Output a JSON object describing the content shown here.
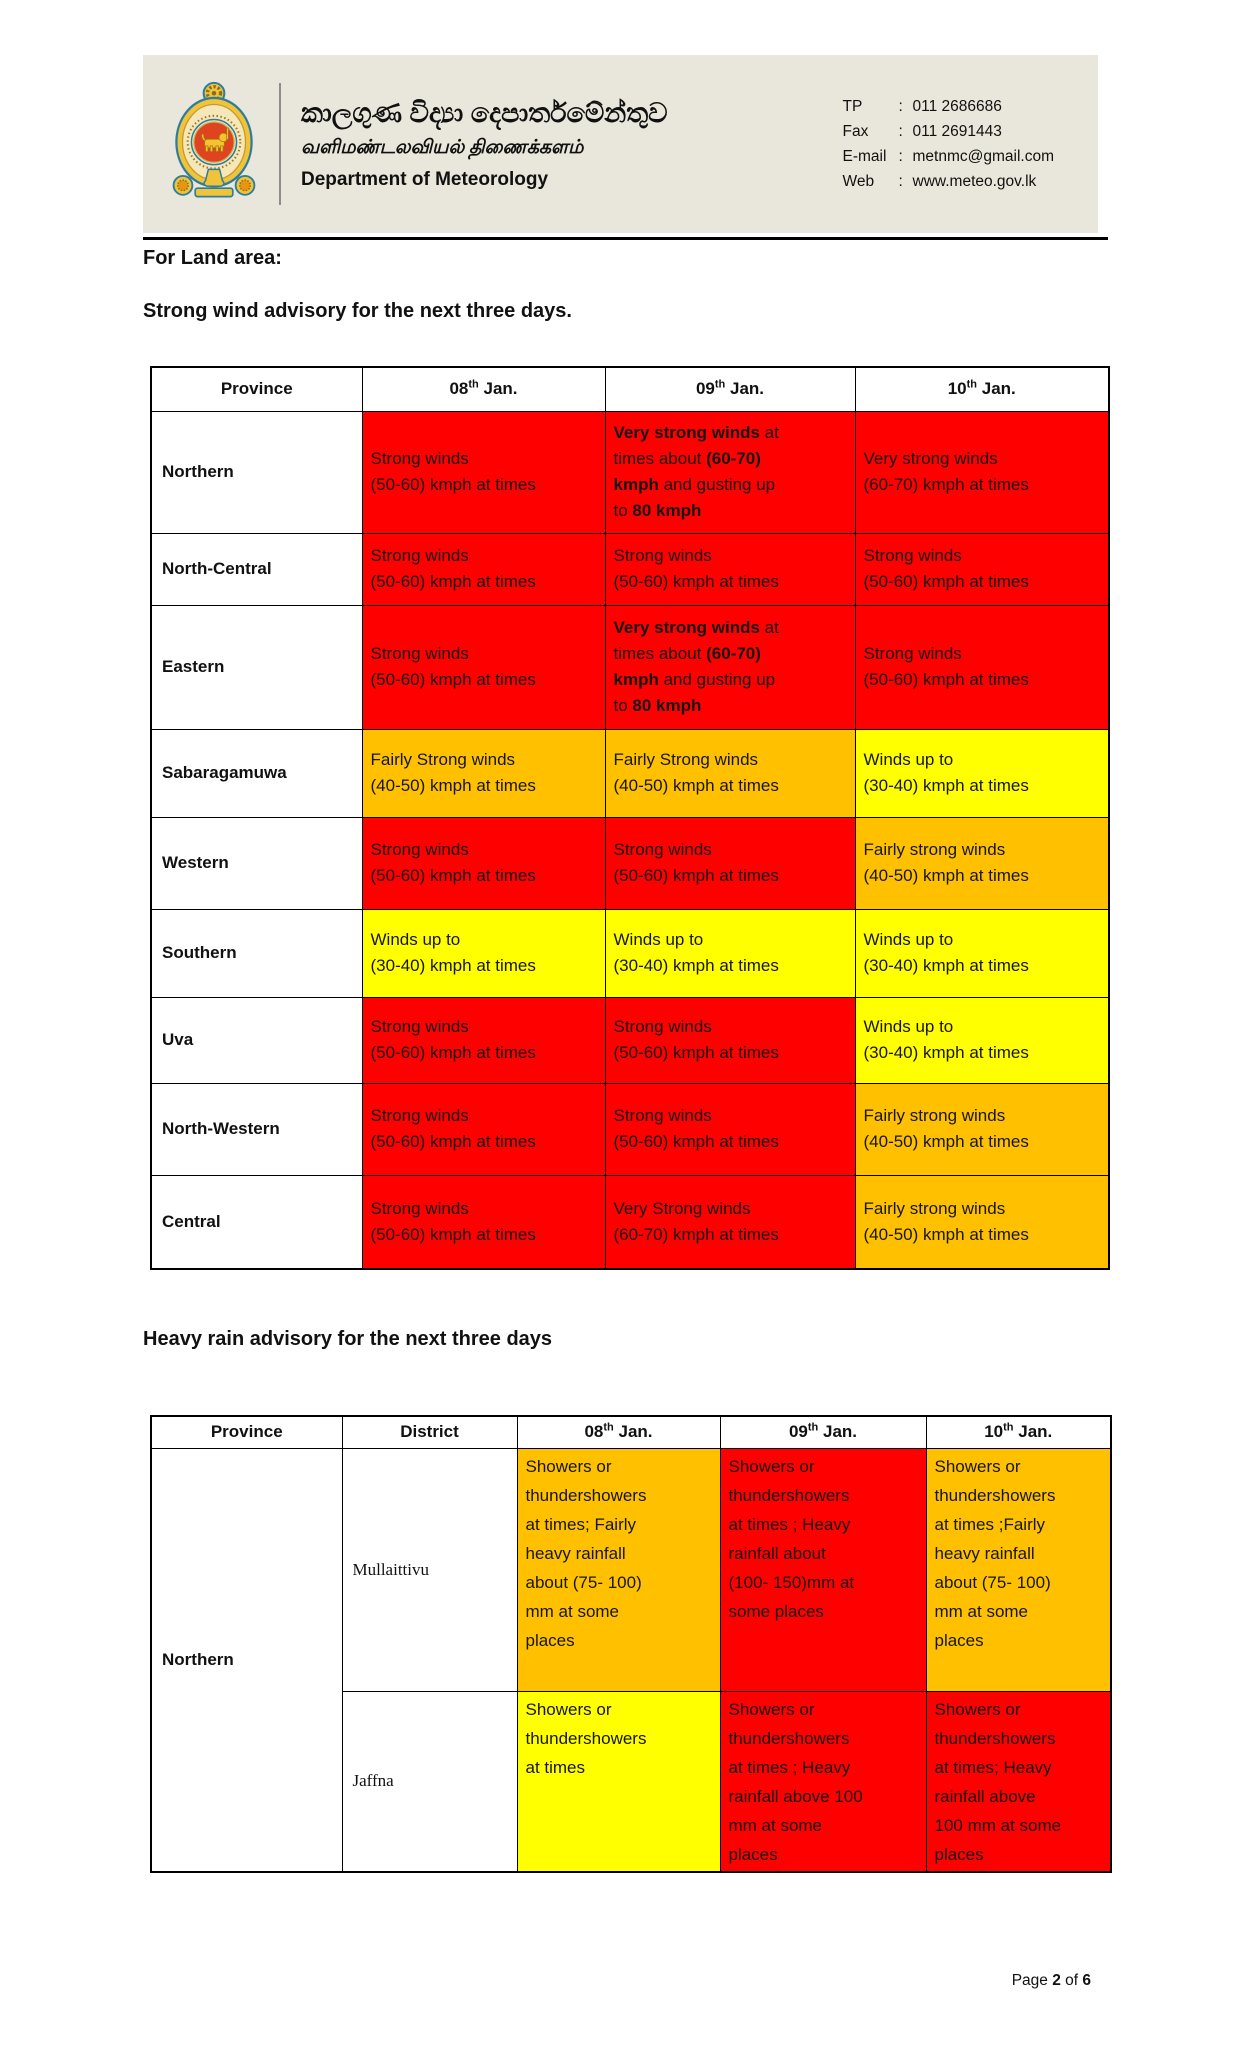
{
  "header": {
    "logo": "sri-lanka-state-emblem",
    "org": {
      "title_sinhala": "කාලගුණ විද්‍යා දෙපාර්තමේන්තුව",
      "title_tamil": "வளிமண்டலவியல் திணைக்களம்",
      "title_english": "Department of Meteorology"
    },
    "contacts": [
      {
        "label": "TP",
        "sep": ":",
        "value": "011 2686686"
      },
      {
        "label": "Fax",
        "sep": ":",
        "value": "011 2691443"
      },
      {
        "label": "E-mail",
        "sep": ":",
        "value": "metnmc@gmail.com"
      },
      {
        "label": "Web",
        "sep": ":",
        "value": "www.meteo.gov.lk"
      }
    ]
  },
  "headings": {
    "land_area": "For Land area:",
    "wind_advisory": "Strong wind advisory for the next three days.",
    "rain_advisory": "Heavy rain advisory for the next three days"
  },
  "colors": {
    "red": "#FF0000",
    "orange": "#FFC000",
    "yellow": "#FFFF00",
    "header_band": "#E9E6DB"
  },
  "wind_table": {
    "columns": [
      {
        "label": "Province"
      },
      {
        "day": "08",
        "suffix": "th",
        "rest": " Jan."
      },
      {
        "day": "09",
        "suffix": "th",
        "rest": " Jan."
      },
      {
        "day": "10",
        "suffix": "th",
        "rest": " Jan."
      }
    ],
    "rows": [
      {
        "province": "Northern",
        "cells": [
          {
            "color": "red",
            "text": "Strong winds\n(50-60) kmph at times"
          },
          {
            "color": "red",
            "segments": [
              {
                "t": "Very strong winds",
                "b": true
              },
              {
                "t": " at\ntimes about "
              },
              {
                "t": "(60-70)\nkmph",
                "b": true
              },
              {
                "t": " and gusting up\nto "
              },
              {
                "t": "80 kmph",
                "b": true
              }
            ]
          },
          {
            "color": "red",
            "text": "Very strong winds\n(60-70) kmph at times"
          }
        ]
      },
      {
        "province": "North-Central",
        "cells": [
          {
            "color": "red",
            "text": "Strong winds\n(50-60) kmph at times"
          },
          {
            "color": "red",
            "text": "Strong winds\n(50-60) kmph at times"
          },
          {
            "color": "red",
            "text": "Strong winds\n(50-60) kmph at times"
          }
        ]
      },
      {
        "province": "Eastern",
        "cells": [
          {
            "color": "red",
            "text": "Strong winds\n(50-60) kmph at times"
          },
          {
            "color": "red",
            "segments": [
              {
                "t": "Very strong winds",
                "b": true
              },
              {
                "t": " at\ntimes about "
              },
              {
                "t": "(60-70)\nkmph",
                "b": true
              },
              {
                "t": " and gusting up\nto "
              },
              {
                "t": "80 kmph",
                "b": true
              }
            ]
          },
          {
            "color": "red",
            "text": "Strong winds\n(50-60) kmph at times"
          }
        ]
      },
      {
        "province": "Sabaragamuwa",
        "cells": [
          {
            "color": "orange",
            "text": "Fairly Strong winds\n(40-50) kmph at times"
          },
          {
            "color": "orange",
            "text": "Fairly Strong winds\n(40-50) kmph at times"
          },
          {
            "color": "yellow",
            "text": "Winds up to\n(30-40) kmph at times"
          }
        ]
      },
      {
        "province": "Western",
        "cells": [
          {
            "color": "red",
            "text": "Strong winds\n(50-60) kmph at times"
          },
          {
            "color": "red",
            "text": "Strong winds\n(50-60) kmph at times"
          },
          {
            "color": "orange",
            "text": "Fairly strong winds\n(40-50) kmph at times"
          }
        ]
      },
      {
        "province": "Southern",
        "cells": [
          {
            "color": "yellow",
            "text": "Winds up to\n(30-40) kmph at times"
          },
          {
            "color": "yellow",
            "text": "Winds up to\n(30-40) kmph at times"
          },
          {
            "color": "yellow",
            "text": "Winds up to\n(30-40) kmph at times"
          }
        ]
      },
      {
        "province": "Uva",
        "cells": [
          {
            "color": "red",
            "text": "Strong winds\n(50-60) kmph at times"
          },
          {
            "color": "red",
            "text": "Strong winds\n(50-60) kmph at times"
          },
          {
            "color": "yellow",
            "text": "Winds up to\n(30-40) kmph at times"
          }
        ]
      },
      {
        "province": "North-Western",
        "cells": [
          {
            "color": "red",
            "text": "Strong winds\n(50-60) kmph at times"
          },
          {
            "color": "red",
            "text": "Strong winds\n(50-60) kmph at times"
          },
          {
            "color": "orange",
            "text": "Fairly strong winds\n(40-50) kmph at times"
          }
        ]
      },
      {
        "province": "Central",
        "cells": [
          {
            "color": "red",
            "text": "Strong winds\n(50-60) kmph at times"
          },
          {
            "color": "red",
            "text": "Very Strong winds\n(60-70) kmph at times"
          },
          {
            "color": "orange",
            "text": "Fairly strong winds\n(40-50) kmph at times"
          }
        ]
      }
    ]
  },
  "rain_table": {
    "columns": [
      {
        "label": "Province"
      },
      {
        "label": "District"
      },
      {
        "day": "08",
        "suffix": "th",
        "rest": " Jan."
      },
      {
        "day": "09",
        "suffix": "th",
        "rest": " Jan."
      },
      {
        "day": "10",
        "suffix": "th",
        "rest": " Jan."
      }
    ],
    "province_group": {
      "label": "Northern",
      "rowspan": 2
    },
    "rows": [
      {
        "district": "Mullaittivu",
        "cells": [
          {
            "color": "orange",
            "text": "Showers or\nthundershowers\nat times; Fairly\nheavy rainfall\nabout (75- 100)\nmm at some\nplaces"
          },
          {
            "color": "red",
            "text": "Showers or\nthundershowers\nat times ; Heavy\nrainfall about\n(100- 150)mm at\nsome places"
          },
          {
            "color": "orange",
            "text": "Showers or\nthundershowers\nat times ;Fairly\nheavy rainfall\nabout (75- 100)\nmm at some\nplaces"
          }
        ]
      },
      {
        "district": "Jaffna",
        "cells": [
          {
            "color": "yellow",
            "text": "Showers or\nthundershowers\nat times"
          },
          {
            "color": "red",
            "text": "Showers or\nthundershowers\nat times ; Heavy\nrainfall above 100\nmm at some\nplaces"
          },
          {
            "color": "red",
            "text": "Showers or\nthundershowers\nat times; Heavy\nrainfall above\n100 mm at some\nplaces"
          }
        ]
      }
    ]
  },
  "footer": {
    "prefix": "Page ",
    "number": "2",
    "middle": " of ",
    "total": "6"
  }
}
